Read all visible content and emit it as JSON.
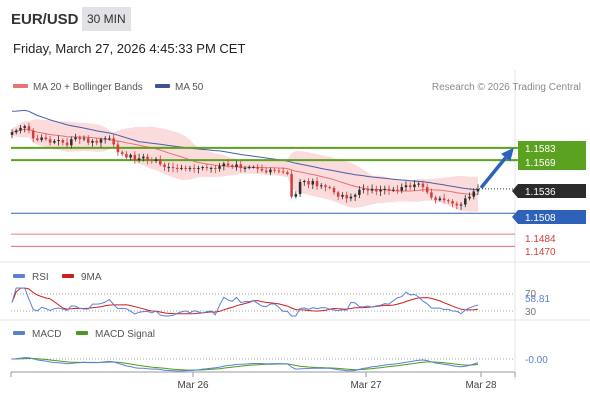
{
  "header": {
    "pair": "EUR/USD",
    "timeframe": "30 MIN",
    "datetime": "Friday, March 27, 2026 4:45:33 PM CET"
  },
  "colors": {
    "up_candle": "#2d2d2d",
    "down_candle": "#d43d3d",
    "band_fill": "#f9cfcf",
    "ma20": "#e87373",
    "ma50": "#4a5da8",
    "resistance": "#5aa21f",
    "support": "#2e62b8",
    "target_line": "#e05555",
    "last_price": "#2b2b2b",
    "arrow": "#2e62b8",
    "rsi": "#5b80d6",
    "rsi_ma": "#cc1f1f",
    "macd": "#5b80d6",
    "macd_signal": "#4e9a1e"
  },
  "chart_data": [
    {
      "type": "candlestick",
      "legend": [
        "MA 20 + Bollinger Bands",
        "MA 50"
      ],
      "legend_position": "top-left",
      "credit": "Research © 2026 Trading Central",
      "ylim": [
        1.1452,
        1.1638
      ],
      "levels": {
        "resistance": [
          1.1583,
          1.1569
        ],
        "last_price": 1.1536,
        "support": 1.1508,
        "targets": [
          1.1484,
          1.147
        ]
      },
      "level_labels": {
        "r1": "1.1583",
        "r2": "1.1569",
        "last": "1.1536",
        "s1": "1.1508",
        "t1": "1.1484",
        "t2": "1.1470"
      },
      "x_ticks": [
        "Mar 26",
        "Mar 27",
        "Mar 28"
      ],
      "closes": [
        1.1601,
        1.1603,
        1.1606,
        1.1608,
        1.1603,
        1.1594,
        1.1592,
        1.1595,
        1.1593,
        1.1589,
        1.1591,
        1.1592,
        1.1589,
        1.1586,
        1.1593,
        1.1595,
        1.1593,
        1.1594,
        1.1589,
        1.1591,
        1.1589,
        1.1593,
        1.1594,
        1.1594,
        1.1587,
        1.1578,
        1.1576,
        1.1572,
        1.1575,
        1.1569,
        1.1571,
        1.1573,
        1.1569,
        1.1568,
        1.157,
        1.1564,
        1.1561,
        1.1561,
        1.156,
        1.1559,
        1.156,
        1.1559,
        1.156,
        1.1559,
        1.156,
        1.1561,
        1.156,
        1.156,
        1.1559,
        1.1562,
        1.1565,
        1.1563,
        1.1561,
        1.1564,
        1.156,
        1.156,
        1.1561,
        1.1561,
        1.1559,
        1.1557,
        1.1555,
        1.1558,
        1.1557,
        1.1556,
        1.1555,
        1.1553,
        1.1527,
        1.153,
        1.1544,
        1.1545,
        1.1541,
        1.1545,
        1.1539,
        1.154,
        1.1538,
        1.1537,
        1.1532,
        1.1527,
        1.1529,
        1.1525,
        1.1527,
        1.1529,
        1.1535,
        1.1536,
        1.1534,
        1.1536,
        1.1533,
        1.1535,
        1.1536,
        1.1534,
        1.1535,
        1.1534,
        1.1538,
        1.154,
        1.1538,
        1.1541,
        1.1542,
        1.1538,
        1.1532,
        1.1526,
        1.1523,
        1.1525,
        1.1523,
        1.1522,
        1.1519,
        1.1517,
        1.1518,
        1.1525,
        1.1527,
        1.1533,
        1.1536
      ],
      "rsi": {
        "legend": [
          "RSI",
          "9MA"
        ],
        "levels": [
          70,
          30
        ],
        "level_labels": [
          "70",
          "30"
        ],
        "last_label": "58.81",
        "last": 58.81
      },
      "macd": {
        "legend": [
          "MACD",
          "MACD Signal"
        ],
        "last_label": "-0.00",
        "last": -0.0001
      }
    }
  ]
}
